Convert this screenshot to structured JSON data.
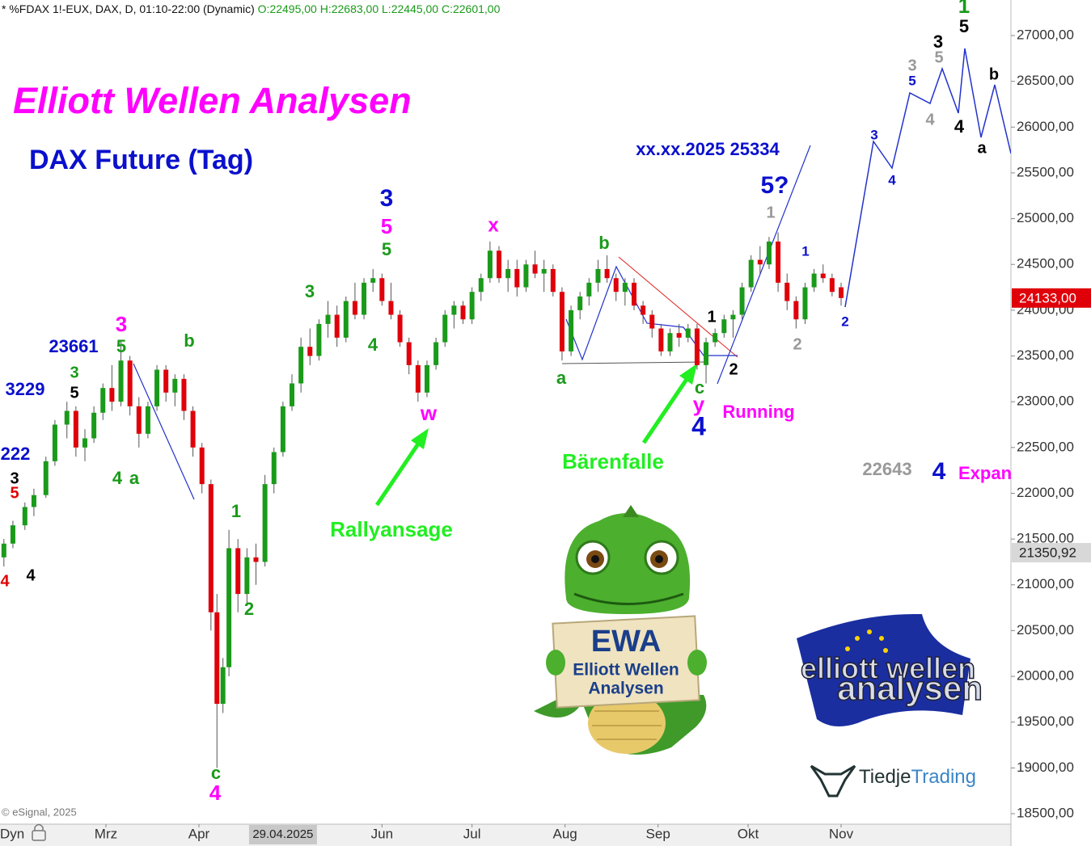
{
  "header": {
    "symbol": "* %FDAX 1!-EUX, DAX, D, 01:10-22:00 (Dynamic)",
    "ohlc": "O:22495,00 H:22683,00 L:22445,00 C:22601,00"
  },
  "title": "Elliott Wellen Analysen",
  "subtitle": "DAX Future (Tag)",
  "copyright": "© eSignal, 2025",
  "chart_data": {
    "type": "candlestick",
    "up_color": "#1a9a1a",
    "down_color": "#e0000a",
    "xlim": [
      24.7,
      361.6
    ],
    "xticks": [
      {
        "value": 60,
        "label": "Mrz"
      },
      {
        "value": 91,
        "label": "Apr"
      },
      {
        "value": 152,
        "label": "Jun"
      },
      {
        "value": 182,
        "label": "Jul"
      },
      {
        "value": 213,
        "label": "Aug"
      },
      {
        "value": 244,
        "label": "Sep"
      },
      {
        "value": 274,
        "label": "Okt"
      },
      {
        "value": 305,
        "label": "Nov"
      }
    ],
    "highlight_date": {
      "value": 119,
      "label": "29.04.2025"
    },
    "axis_mode": "Dyn",
    "ylim": [
      18500,
      27000
    ],
    "yticks": [
      {
        "value": 18500,
        "label": "18500,00"
      },
      {
        "value": 19000,
        "label": "19000,00"
      },
      {
        "value": 19500,
        "label": "19500,00"
      },
      {
        "value": 20000,
        "label": "20000,00"
      },
      {
        "value": 20500,
        "label": "20500,00"
      },
      {
        "value": 21000,
        "label": "21000,00"
      },
      {
        "value": 21500,
        "label": "21500,00"
      },
      {
        "value": 22000,
        "label": "22000,00"
      },
      {
        "value": 22500,
        "label": "22500,00"
      },
      {
        "value": 23000,
        "label": "23000,00"
      },
      {
        "value": 23500,
        "label": "23500,00"
      },
      {
        "value": 24000,
        "label": "24000,00"
      },
      {
        "value": 24500,
        "label": "24500,00"
      },
      {
        "value": 25000,
        "label": "25000,00"
      },
      {
        "value": 25500,
        "label": "25500,00"
      },
      {
        "value": 26000,
        "label": "26000,00"
      },
      {
        "value": 26500,
        "label": "26500,00"
      },
      {
        "value": 27000,
        "label": "27000,00"
      }
    ],
    "current_price": {
      "value": 24133,
      "label": "24133,00"
    },
    "marker_price": {
      "value": 21350.92,
      "label": "21350,92"
    },
    "x": [
      26,
      29,
      33,
      36,
      40,
      43,
      47,
      50,
      53,
      56,
      59,
      62,
      65,
      68,
      71,
      74,
      77,
      80,
      83,
      86,
      89,
      92,
      95,
      97,
      99,
      101,
      104,
      107,
      110,
      113,
      116,
      119,
      122,
      125,
      128,
      131,
      134,
      137,
      140,
      143,
      146,
      149,
      152,
      155,
      158,
      161,
      164,
      167,
      170,
      173,
      176,
      179,
      182,
      185,
      188,
      191,
      194,
      197,
      200,
      203,
      206,
      209,
      212,
      215,
      218,
      221,
      224,
      227,
      230,
      233,
      236,
      239,
      242,
      245,
      248,
      251,
      254,
      257,
      260,
      263,
      266,
      269,
      272,
      275,
      278,
      281,
      284,
      287,
      290,
      293,
      296,
      299,
      302,
      305
    ],
    "open": [
      21300,
      21450,
      21650,
      21850,
      21980,
      22350,
      22750,
      22900,
      22500,
      22600,
      22880,
      23150,
      23000,
      23450,
      22950,
      22650,
      22950,
      23350,
      23100,
      23250,
      22900,
      22500,
      22100,
      20700,
      19700,
      20100,
      21400,
      20900,
      21300,
      21250,
      22100,
      22450,
      22950,
      23200,
      23600,
      23500,
      23850,
      23950,
      23700,
      24100,
      23950,
      24300,
      24350,
      24100,
      23950,
      23650,
      23400,
      23100,
      23400,
      23650,
      23950,
      24050,
      23900,
      24200,
      24350,
      24650,
      24350,
      24450,
      24250,
      24500,
      24400,
      24450,
      24200,
      23550,
      24000,
      24150,
      24300,
      24450,
      24350,
      24200,
      24300,
      24050,
      23950,
      23800,
      23550,
      23750,
      23700,
      23800,
      23400,
      23650,
      23750,
      23900,
      23950,
      24250,
      24550,
      24500,
      24750,
      24300,
      24100,
      23900,
      24250,
      24400,
      24350,
      24250
    ],
    "high": [
      21500,
      21700,
      21900,
      22050,
      22400,
      22800,
      23000,
      22950,
      22700,
      22950,
      23200,
      23400,
      23661,
      23500,
      23050,
      23000,
      23400,
      23400,
      23300,
      23300,
      22950,
      22550,
      22150,
      20900,
      20200,
      21600,
      21500,
      21400,
      21450,
      22200,
      22500,
      23000,
      23300,
      23700,
      23800,
      23900,
      24100,
      24050,
      24150,
      24300,
      24350,
      24450,
      24400,
      24300,
      24000,
      23700,
      23450,
      23450,
      23700,
      24000,
      24100,
      24100,
      24250,
      24400,
      24750,
      24700,
      24550,
      24550,
      24550,
      24650,
      24550,
      24500,
      24250,
      24050,
      24200,
      24350,
      24550,
      24600,
      24400,
      24350,
      24350,
      24100,
      24000,
      23850,
      23800,
      23850,
      23850,
      23850,
      23700,
      23800,
      23950,
      24000,
      24300,
      24600,
      24700,
      24800,
      24850,
      24400,
      24150,
      24300,
      24450,
      24500,
      24400,
      24300
    ],
    "low": [
      21200,
      21400,
      21600,
      21750,
      21950,
      22300,
      22600,
      22400,
      22350,
      22550,
      22800,
      22900,
      22950,
      22850,
      22500,
      22600,
      22900,
      23000,
      22950,
      22800,
      22400,
      22000,
      20500,
      19000,
      19600,
      20000,
      20700,
      20800,
      21000,
      21200,
      22000,
      22400,
      22900,
      23100,
      23400,
      23450,
      23700,
      23600,
      23650,
      23900,
      23900,
      24200,
      24050,
      23900,
      23600,
      23300,
      23000,
      23050,
      23350,
      23600,
      23800,
      23850,
      23850,
      24100,
      24300,
      24300,
      24200,
      24150,
      24200,
      24350,
      24200,
      24150,
      23450,
      23500,
      23900,
      24050,
      24200,
      24300,
      24100,
      24050,
      24000,
      23850,
      23700,
      23500,
      23500,
      23600,
      23650,
      23350,
      23200,
      23600,
      23700,
      23700,
      23900,
      24200,
      24400,
      24450,
      24200,
      24000,
      23800,
      23850,
      24200,
      24300,
      24150,
      24050
    ],
    "close": [
      21450,
      21650,
      21850,
      21980,
      22350,
      22750,
      22900,
      22500,
      22600,
      22880,
      23150,
      23000,
      23450,
      22950,
      22650,
      22950,
      23350,
      23100,
      23250,
      22900,
      22500,
      22100,
      20700,
      19700,
      20100,
      21400,
      20900,
      21300,
      21250,
      22100,
      22450,
      22950,
      23200,
      23600,
      23500,
      23850,
      23950,
      23700,
      24100,
      23950,
      24300,
      24350,
      24100,
      23950,
      23650,
      23400,
      23100,
      23400,
      23650,
      23950,
      24050,
      23900,
      24200,
      24350,
      24650,
      24350,
      24450,
      24250,
      24500,
      24400,
      24450,
      24200,
      23550,
      24000,
      24150,
      24300,
      24450,
      24350,
      24200,
      24300,
      24050,
      23950,
      23800,
      23550,
      23750,
      23700,
      23800,
      23400,
      23650,
      23750,
      23900,
      23950,
      24250,
      24550,
      24500,
      24750,
      24300,
      24100,
      23900,
      24250,
      24400,
      24350,
      24200,
      24133
    ]
  },
  "annotations": [
    "4",
    "222",
    "3229",
    "5",
    "3",
    "4",
    "3",
    "5",
    "23661",
    "3",
    "5",
    "4",
    "a",
    "b",
    "1",
    "2",
    "c",
    "4",
    "3",
    "4",
    "3",
    "5",
    "5",
    "w",
    "x",
    "Rallyansage",
    "b",
    "a",
    "Bärenfalle",
    "1",
    "2",
    "c",
    "y",
    "4",
    "Running",
    "xx.xx.2025 25334",
    "5?",
    "1",
    "1",
    "2",
    "2",
    "22643",
    "4",
    "Expan",
    "3",
    "4",
    "3",
    "5",
    "4",
    "3",
    "5",
    "4",
    "1",
    "5",
    "a",
    "b"
  ],
  "logos": {
    "mascot": [
      "EWA",
      "Elliott Wellen",
      "Analysen"
    ],
    "ewa": [
      "elliott wellen",
      "analysen"
    ],
    "tiedje": [
      "Tiedje",
      "Trading"
    ]
  }
}
